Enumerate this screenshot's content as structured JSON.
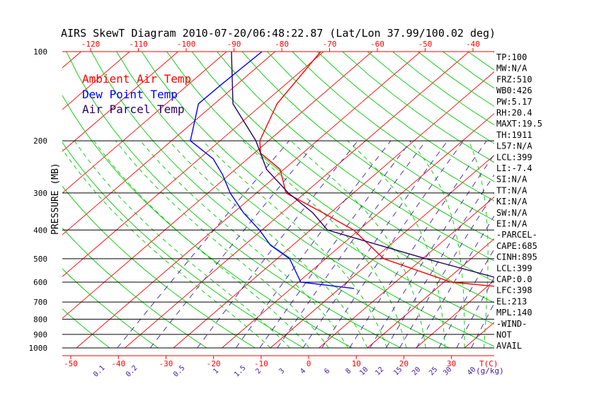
{
  "colors": {
    "ambient": "#ff0000",
    "dewpoint": "#0000ff",
    "parcel": "#2a0060",
    "dry_adiabat": "#00c800",
    "mixing_ratio": "#3f1aa8",
    "isotherm": "#ff0000",
    "isobar": "#000000",
    "hatch": "#2a0060",
    "temp_axis": "#ff0000",
    "mixing_axis": "#3f1aa8"
  },
  "chart_data": {
    "type": "line",
    "title": "AIRS SkewT Diagram 2010-07-20/06:48:22.87 (Lat/Lon 37.99/100.02 deg)",
    "ylabel": "PRESSURE (MB)",
    "xlabel": "T(C)",
    "mixing_ratio_label": "(g/kg)",
    "y_scale": "log",
    "ylim": [
      1000,
      100
    ],
    "pressure_levels": [
      100,
      200,
      300,
      400,
      500,
      600,
      700,
      800,
      900,
      1000
    ],
    "top_temp_ticks": [
      -120,
      -110,
      -100,
      -90,
      -80,
      -70,
      -60,
      -50,
      -40
    ],
    "bottom_temp_ticks": [
      -50,
      -40,
      -30,
      -20,
      -10,
      0,
      10,
      20,
      30
    ],
    "mixing_ratio_ticks": [
      "0.1",
      "0.2",
      "0.5",
      "1",
      "1.5",
      "2",
      "3",
      "4",
      "6",
      "8",
      "10",
      "12",
      "15",
      "20",
      "25",
      "30",
      "40"
    ],
    "legend": [
      "Ambient Air Temp",
      "Dew Point Temp",
      "Air Parcel Temp"
    ],
    "legend_position": "top-left",
    "series": [
      {
        "name": "Ambient Air Temp",
        "points": [
          [
            100,
            -70.6
          ],
          [
            150,
            -67.1
          ],
          [
            200,
            -61.8
          ],
          [
            220,
            -58.7
          ],
          [
            250,
            -50.7
          ],
          [
            300,
            -43.9
          ],
          [
            350,
            -31.5
          ],
          [
            400,
            -21.1
          ],
          [
            500,
            -8.0
          ],
          [
            600,
            11.5
          ],
          [
            620,
            21.7
          ],
          [
            640,
            23.8
          ]
        ]
      },
      {
        "name": "Dew Point Temp",
        "points": [
          [
            100,
            -82.7
          ],
          [
            130,
            -83.2
          ],
          [
            150,
            -83.3
          ],
          [
            200,
            -76.1
          ],
          [
            230,
            -67.1
          ],
          [
            260,
            -61.4
          ],
          [
            300,
            -55.4
          ],
          [
            350,
            -47.9
          ],
          [
            400,
            -40.5
          ],
          [
            450,
            -34.6
          ],
          [
            500,
            -27.4
          ],
          [
            600,
            -19.5
          ],
          [
            630,
            -7.0
          ]
        ]
      },
      {
        "name": "Air Parcel Temp",
        "points": [
          [
            100,
            -89.0
          ],
          [
            150,
            -76.2
          ],
          [
            200,
            -62.6
          ],
          [
            250,
            -53.5
          ],
          [
            300,
            -43.4
          ],
          [
            350,
            -33.6
          ],
          [
            400,
            -26.5
          ],
          [
            500,
            0.7
          ],
          [
            600,
            24.2
          ]
        ]
      }
    ],
    "indices": [
      "TP:100",
      "MW:N/A",
      "FRZ:510",
      "WB0:426",
      "PW:5.17",
      "RH:20.4",
      "MAXT:19.5",
      "TH:1911",
      "L57:N/A",
      "LCL:399",
      "LI:-7.4",
      "SI:N/A",
      "TT:N/A",
      "KI:N/A",
      "SW:N/A",
      "EI:N/A",
      "-PARCEL-",
      "CAPE:685",
      "CINH:895",
      "LCL:399",
      "CAP:0.0",
      "LFC:398",
      "EL:213",
      "MPL:140",
      "-WIND-",
      "NOT",
      "AVAIL"
    ]
  }
}
